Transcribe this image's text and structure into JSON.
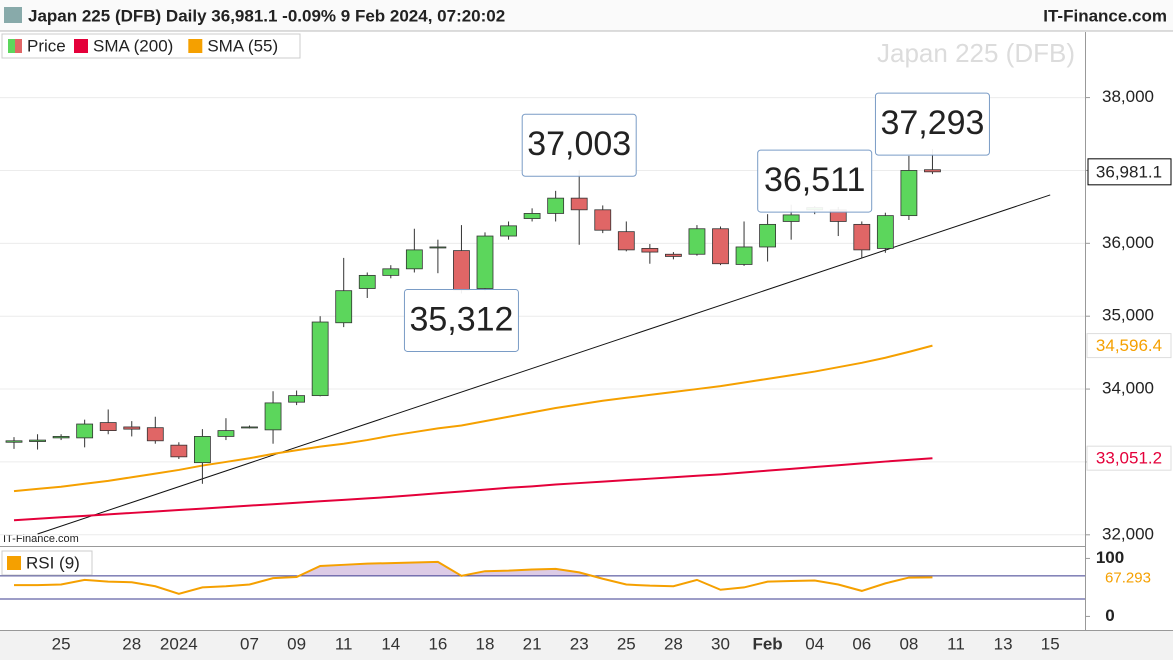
{
  "title": "Japan 225 (DFB) Daily 36,981.1 -0.09% 9 Feb 2024, 07:20:02",
  "source": "IT-Finance.com",
  "chart_data": [
    {
      "type": "candlestick",
      "watermark": "Japan 225 (DFB)",
      "footer_source": "IT-Finance.com",
      "price_name": "Price",
      "up_color": "#5cd65c",
      "down_color": "#e06666",
      "categories": [
        null,
        null,
        "25",
        null,
        null,
        "28",
        null,
        "2024",
        null,
        null,
        "07",
        null,
        "09",
        null,
        "11",
        null,
        "14",
        null,
        "16",
        null,
        "18",
        null,
        "21",
        null,
        "23",
        null,
        "25",
        null,
        "28",
        null,
        "30",
        null,
        "Feb",
        null,
        "04",
        null,
        "06",
        null,
        "08",
        null,
        "11",
        null,
        "13",
        null,
        "15"
      ],
      "open": [
        33270,
        33280,
        33330,
        33330,
        33540,
        33480,
        33470,
        33230,
        32990,
        33350,
        33480,
        33440,
        33820,
        33910,
        34910,
        35380,
        35560,
        35650,
        35950,
        35900,
        35380,
        36100,
        36340,
        36410,
        36620,
        36460,
        36160,
        35930,
        35850,
        35850,
        36200,
        35710,
        35950,
        36300,
        36460,
        36460,
        36260,
        35930,
        36380,
        37010,
        null,
        null,
        null,
        null,
        null
      ],
      "high": [
        33340,
        33380,
        33380,
        33580,
        33720,
        33560,
        33620,
        33270,
        33450,
        33600,
        33500,
        33970,
        33980,
        35000,
        35800,
        35600,
        35700,
        36200,
        36050,
        36250,
        36150,
        36300,
        36480,
        36720,
        37003,
        36520,
        36300,
        35990,
        35880,
        36250,
        36230,
        36300,
        36400,
        36530,
        36511,
        36500,
        36300,
        36420,
        37200,
        37293,
        null,
        null,
        null,
        null,
        null
      ],
      "low": [
        33180,
        33170,
        33300,
        33200,
        33380,
        33350,
        33250,
        33040,
        32700,
        33300,
        33460,
        33250,
        33780,
        33900,
        34850,
        35250,
        35520,
        35600,
        35590,
        35312,
        35350,
        36050,
        36300,
        36300,
        35980,
        36140,
        35890,
        35720,
        35780,
        35830,
        35700,
        35690,
        35750,
        36050,
        36400,
        36100,
        35800,
        35870,
        36320,
        36950,
        null,
        null,
        null,
        null,
        null
      ],
      "close": [
        33290,
        33300,
        33350,
        33520,
        33430,
        33450,
        33290,
        33070,
        33350,
        33430,
        33480,
        33810,
        33910,
        34920,
        35350,
        35560,
        35650,
        35910,
        35950,
        35360,
        36100,
        36240,
        36410,
        36620,
        36460,
        36180,
        35910,
        35880,
        35820,
        36200,
        35720,
        35950,
        36260,
        36390,
        36490,
        36300,
        35910,
        36380,
        37000,
        36981.1,
        null,
        null,
        null,
        null,
        null
      ],
      "last_price_label": "36,981.1",
      "series": [
        {
          "name": "SMA (200)",
          "color": "#e4003a",
          "last_value_label": "33,051.2",
          "values": [
            32200,
            32220,
            32240,
            32260,
            32280,
            32300,
            32320,
            32340,
            32360,
            32380,
            32400,
            32420,
            32440,
            32460,
            32480,
            32500,
            32520,
            32545,
            32570,
            32595,
            32620,
            32645,
            32665,
            32690,
            32710,
            32730,
            32750,
            32770,
            32790,
            32810,
            32830,
            32855,
            32880,
            32905,
            32930,
            32955,
            32980,
            33005,
            33028,
            33051.2,
            null,
            null,
            null,
            null,
            null
          ]
        },
        {
          "name": "SMA (55)",
          "color": "#f5a000",
          "last_value_label": "34,596.4",
          "values": [
            32600,
            32630,
            32660,
            32700,
            32740,
            32790,
            32840,
            32890,
            32950,
            33000,
            33050,
            33110,
            33160,
            33210,
            33250,
            33300,
            33360,
            33410,
            33460,
            33500,
            33560,
            33620,
            33680,
            33740,
            33790,
            33840,
            33880,
            33920,
            33960,
            34000,
            34040,
            34090,
            34140,
            34190,
            34240,
            34300,
            34360,
            34430,
            34510,
            34596.4,
            null,
            null,
            null,
            null,
            null
          ]
        }
      ],
      "ylim": [
        31860,
        38900
      ],
      "yticks": [
        {
          "value": 32000,
          "label": "32,000"
        },
        {
          "value": 33000,
          "label": "33,000"
        },
        {
          "value": 34000,
          "label": "34,000"
        },
        {
          "value": 35000,
          "label": "35,000"
        },
        {
          "value": 36000,
          "label": "36,000"
        },
        {
          "value": 37000,
          "label": "37,000"
        },
        {
          "value": 38000,
          "label": "38,000"
        }
      ],
      "grid": true,
      "annotations": [
        {
          "value": 37003,
          "label": "37,003"
        },
        {
          "value": 35312,
          "label": "35,312"
        },
        {
          "value": 36511,
          "label": "36,511"
        },
        {
          "value": 37293,
          "label": "37,293"
        }
      ],
      "trendline": {
        "indices": [
          1,
          44
        ],
        "values": [
          32011,
          36664
        ]
      }
    },
    {
      "type": "line",
      "series": [
        {
          "name": "RSI (9)",
          "color": "#f5a000",
          "values": [
            54,
            54,
            55,
            63,
            60,
            59,
            52,
            39,
            50,
            52,
            55,
            66,
            68,
            87,
            89,
            91,
            92,
            93,
            94,
            70,
            78,
            79,
            81,
            82,
            76,
            65,
            55,
            53,
            52,
            63,
            46,
            50,
            60,
            61,
            62,
            55,
            44,
            57,
            67,
            67.293,
            null,
            null,
            null,
            null,
            null
          ]
        }
      ],
      "last_value_label": "67.293",
      "ylim": [
        -20,
        118
      ],
      "yticks": [
        0,
        100
      ],
      "levels": [
        70,
        30
      ],
      "level_color": "#3b3b8f",
      "fill_color": "#dccbe6"
    }
  ]
}
